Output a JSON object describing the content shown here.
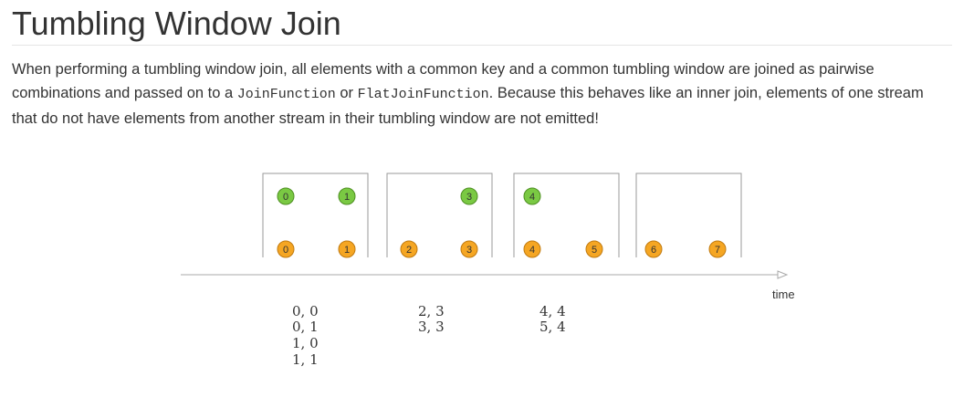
{
  "heading": "Tumbling Window Join",
  "intro": {
    "part1": "When performing a tumbling window join, all elements with a common key and a common tumbling window are joined as pairwise combinations and passed on to a ",
    "code1": "JoinFunction",
    "part2": " or ",
    "code2": "FlatJoinFunction",
    "part3": ". Because this behaves like an inner join, elements of one stream that do not have elements from another stream in their tumbling window are not emitted!"
  },
  "diagram": {
    "axis_label": "time",
    "colors": {
      "green_stream": "#7ac943",
      "orange_stream": "#f5a623",
      "window_border": "#9a9a9a",
      "axis": "#aaaaaa"
    },
    "windows": [
      {
        "green": [
          "0",
          "1"
        ],
        "orange": [
          "0",
          "1"
        ],
        "pairs": [
          "0, 0",
          "0, 1",
          "1, 0",
          "1, 1"
        ]
      },
      {
        "green": [
          "3"
        ],
        "orange": [
          "2",
          "3"
        ],
        "pairs": [
          "2, 3",
          "3, 3"
        ]
      },
      {
        "green": [
          "4"
        ],
        "orange": [
          "4",
          "5"
        ],
        "pairs": [
          "4, 4",
          "5, 4"
        ]
      },
      {
        "green": [],
        "orange": [
          "6",
          "7"
        ],
        "pairs": []
      }
    ]
  }
}
